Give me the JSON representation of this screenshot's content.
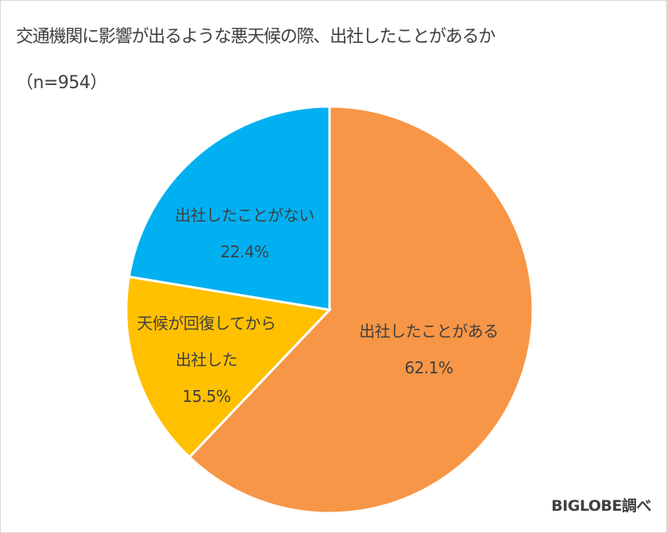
{
  "chart_data": {
    "type": "pie",
    "title": "交通機関に影響が出るような悪天候の際、出社したことがあるか",
    "subtitle": "（n=954）",
    "sample_size": 954,
    "start_angle": "12 o'clock",
    "direction": "clockwise",
    "categories": [
      "出社したことがある",
      "天候が回復してから出社した",
      "出社したことがない"
    ],
    "values": [
      62.1,
      15.5,
      22.4
    ],
    "unit": "%",
    "colors": [
      "#f79646",
      "#ffc000",
      "#00b0f0"
    ],
    "data_labels": [
      "出社したことがある 62.1%",
      "天候が回復してから出社した 15.5%",
      "出社したことがない 22.4%"
    ],
    "legend": "none (labels inside slices)",
    "source": "BIGLOBE調べ"
  },
  "header": {
    "title": "交通機関に影響が出るような悪天候の際、出社したことがあるか",
    "subtitle": "（n=954）"
  },
  "labels": {
    "went": {
      "line1": "出社したことがある",
      "pct": "62.1%"
    },
    "after": {
      "line1": "天候が回復してから",
      "line2": "出社した",
      "pct": "15.5%"
    },
    "never": {
      "line1": "出社したことがない",
      "pct": "22.4%"
    }
  },
  "footer": {
    "credit": "BIGLOBE調べ"
  }
}
